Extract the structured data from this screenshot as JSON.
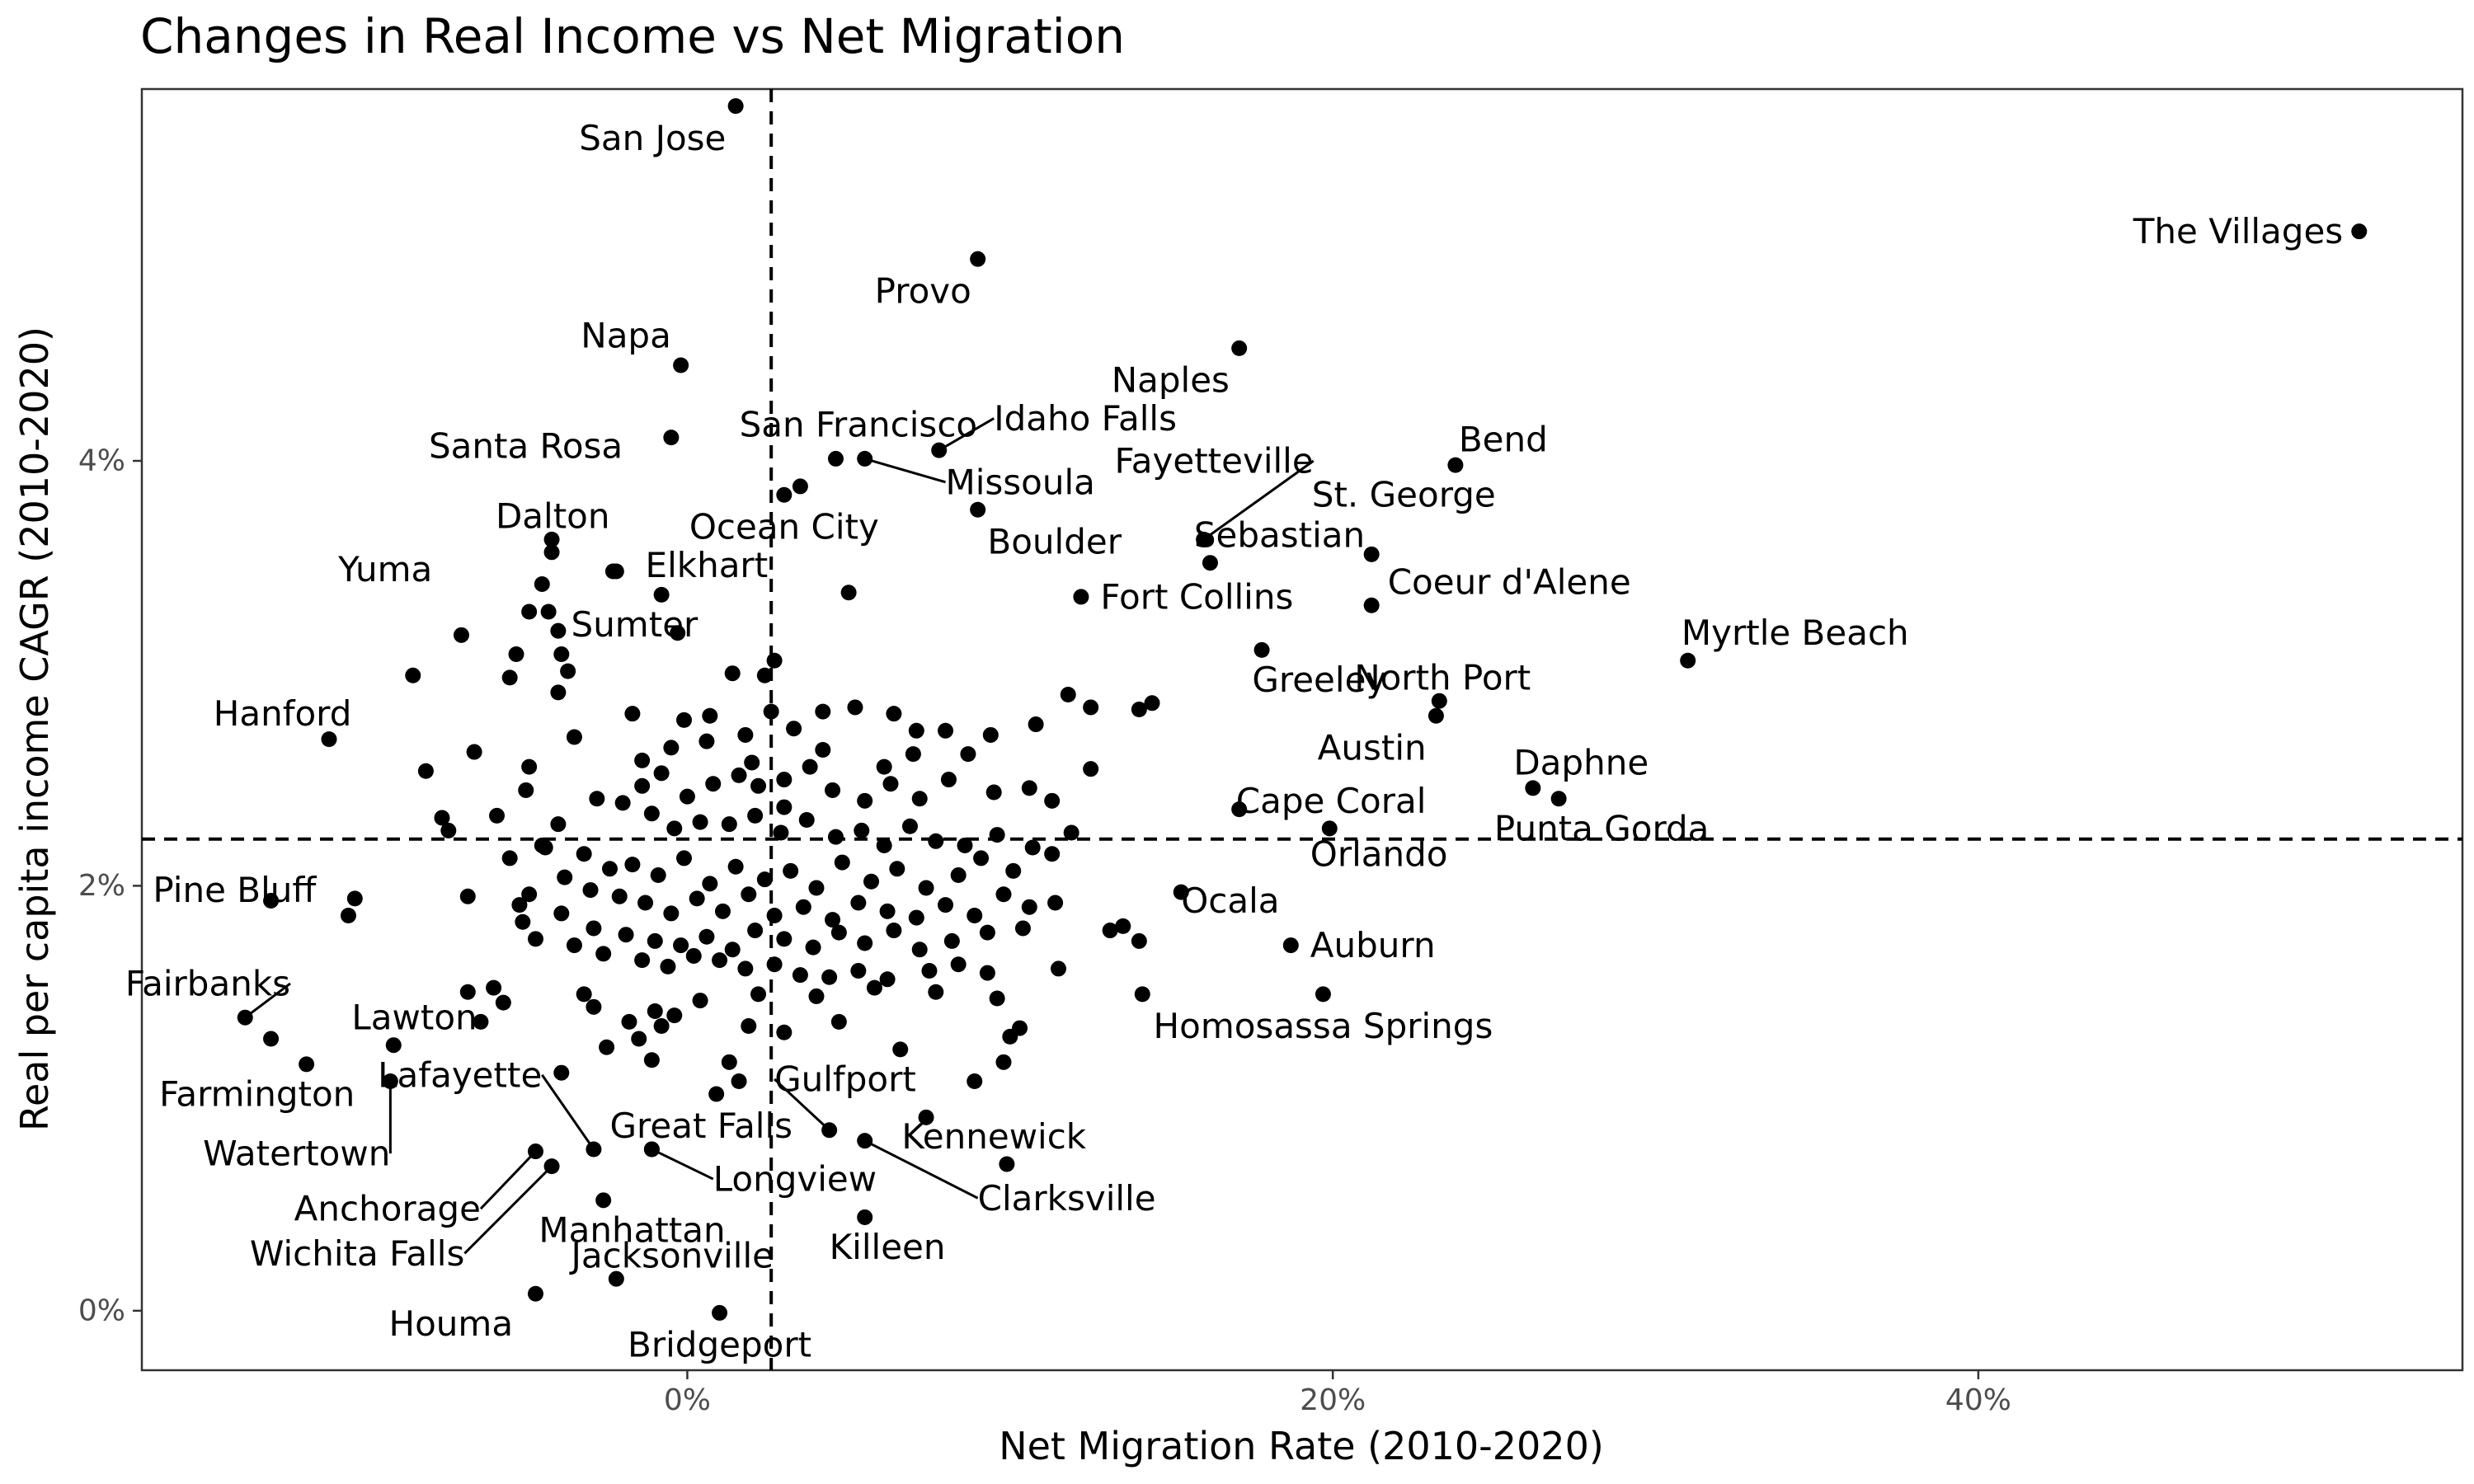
{
  "chart_data": {
    "type": "scatter",
    "title": "Changes in Real Income vs Net Migration",
    "xlabel": "Net Migration Rate (2010-2020)",
    "ylabel": "Real per capita income CAGR (2010-2020)",
    "xlim": [
      -0.169,
      0.55
    ],
    "ylim": [
      -0.0028,
      0.0575
    ],
    "x_ticks": [
      {
        "value": 0.0,
        "label": "0%"
      },
      {
        "value": 0.2,
        "label": "20%"
      },
      {
        "value": 0.4,
        "label": "40%"
      }
    ],
    "y_ticks": [
      {
        "value": 0.0,
        "label": "0%"
      },
      {
        "value": 0.02,
        "label": "2%"
      },
      {
        "value": 0.04,
        "label": "4%"
      }
    ],
    "reference_lines": {
      "x": 0.026,
      "y": 0.0222
    },
    "grid": false,
    "labeled_points": [
      {
        "name": "San Jose",
        "x": 0.015,
        "y": 0.0567,
        "anchor": "end",
        "dx": -0.003,
        "dy": -0.0015
      },
      {
        "name": "Provo",
        "x": 0.09,
        "y": 0.0495,
        "anchor": "end",
        "dx": -0.002,
        "dy": -0.0015
      },
      {
        "name": "The Villages",
        "x": 0.518,
        "y": 0.0508,
        "anchor": "end",
        "dx": -0.005,
        "dy": 0.0
      },
      {
        "name": "Naples",
        "x": 0.171,
        "y": 0.0453,
        "anchor": "end",
        "dx": -0.003,
        "dy": -0.0015
      },
      {
        "name": "Napa",
        "x": -0.002,
        "y": 0.0445,
        "anchor": "end",
        "dx": -0.003,
        "dy": 0.0014
      },
      {
        "name": "Santa Rosa",
        "x": -0.005,
        "y": 0.0411,
        "anchor": "end",
        "dx": -0.015,
        "dy": -0.0004
      },
      {
        "name": "San Francisco",
        "x": 0.046,
        "y": 0.0401,
        "anchor": "middle",
        "dx": 0.007,
        "dy": 0.0016
      },
      {
        "name": "Idaho Falls",
        "x": 0.078,
        "y": 0.0405,
        "anchor": "start",
        "dx": 0.017,
        "dy": 0.0015,
        "leader": true
      },
      {
        "name": "Missoula",
        "x": 0.055,
        "y": 0.0401,
        "anchor": "start",
        "dx": 0.025,
        "dy": -0.0011,
        "leader": true
      },
      {
        "name": "Bend",
        "x": 0.238,
        "y": 0.0398,
        "anchor": "start",
        "dx": 0.001,
        "dy": 0.0012
      },
      {
        "name": "Fayetteville",
        "x": 0.16,
        "y": 0.0363,
        "anchor": "end",
        "dx": 0.034,
        "dy": 0.0037,
        "leader": true
      },
      {
        "name": "St. George",
        "x": 0.212,
        "y": 0.0356,
        "anchor": "middle",
        "dx": 0.01,
        "dy": 0.0028
      },
      {
        "name": "Sebastian",
        "x": 0.162,
        "y": 0.0352,
        "anchor": "start",
        "dx": -0.005,
        "dy": 0.0013
      },
      {
        "name": "Ocean City",
        "x": 0.03,
        "y": 0.0384,
        "anchor": "middle",
        "dx": 0.0,
        "dy": -0.0015
      },
      {
        "name": "Dalton",
        "x": -0.042,
        "y": 0.0363,
        "anchor": "end",
        "dx": 0.018,
        "dy": 0.0011
      },
      {
        "name": "Boulder",
        "x": 0.09,
        "y": 0.0377,
        "anchor": "start",
        "dx": 0.003,
        "dy": -0.0015
      },
      {
        "name": "Yuma",
        "x": -0.042,
        "y": 0.0357,
        "anchor": "end",
        "dx": -0.037,
        "dy": -0.0008
      },
      {
        "name": "Elkhart",
        "x": -0.022,
        "y": 0.0348,
        "anchor": "start",
        "dx": 0.009,
        "dy": 0.0003
      },
      {
        "name": "Coeur d'Alene",
        "x": 0.212,
        "y": 0.0332,
        "anchor": "start",
        "dx": 0.005,
        "dy": 0.0011
      },
      {
        "name": "Fort Collins",
        "x": 0.122,
        "y": 0.0336,
        "anchor": "start",
        "dx": 0.006,
        "dy": 0.0
      },
      {
        "name": "Sumter",
        "x": -0.043,
        "y": 0.0329,
        "anchor": "start",
        "dx": 0.007,
        "dy": -0.0006
      },
      {
        "name": "Myrtle Beach",
        "x": 0.31,
        "y": 0.0306,
        "anchor": "start",
        "dx": -0.002,
        "dy": 0.0013
      },
      {
        "name": "Greeley",
        "x": 0.178,
        "y": 0.0311,
        "anchor": "start",
        "dx": -0.003,
        "dy": -0.0014
      },
      {
        "name": "North Port",
        "x": 0.233,
        "y": 0.0287,
        "anchor": "middle",
        "dx": 0.001,
        "dy": 0.0011
      },
      {
        "name": "Hanford",
        "x": -0.111,
        "y": 0.0269,
        "anchor": "end",
        "dx": 0.007,
        "dy": 0.0012
      },
      {
        "name": "Austin",
        "x": 0.232,
        "y": 0.028,
        "anchor": "end",
        "dx": -0.003,
        "dy": -0.0015
      },
      {
        "name": "Daphne",
        "x": 0.262,
        "y": 0.0246,
        "anchor": "start",
        "dx": -0.006,
        "dy": 0.0012
      },
      {
        "name": "Cape Coral",
        "x": 0.171,
        "y": 0.0236,
        "anchor": "start",
        "dx": -0.001,
        "dy": 0.0004
      },
      {
        "name": "Punta Gorda",
        "x": 0.27,
        "y": 0.0241,
        "anchor": "start",
        "dx": -0.02,
        "dy": -0.0014
      },
      {
        "name": "Orlando",
        "x": 0.199,
        "y": 0.0227,
        "anchor": "start",
        "dx": -0.006,
        "dy": -0.0012
      },
      {
        "name": "Pine Bluff",
        "x": -0.129,
        "y": 0.0193,
        "anchor": "end",
        "dx": 0.014,
        "dy": 0.0005
      },
      {
        "name": "Ocala",
        "x": 0.153,
        "y": 0.0197,
        "anchor": "start",
        "dx": 0.0,
        "dy": -0.0004
      },
      {
        "name": "Auburn",
        "x": 0.187,
        "y": 0.0172,
        "anchor": "start",
        "dx": 0.006,
        "dy": 0.0
      },
      {
        "name": "Fairbanks",
        "x": -0.137,
        "y": 0.0138,
        "anchor": "end",
        "dx": 0.014,
        "dy": 0.0016,
        "leader": true
      },
      {
        "name": "Homosassa Springs",
        "x": 0.197,
        "y": 0.0149,
        "anchor": "middle",
        "dx": 0.0,
        "dy": -0.0015
      },
      {
        "name": "Lawton",
        "x": -0.091,
        "y": 0.0125,
        "anchor": "start",
        "dx": -0.013,
        "dy": 0.0013
      },
      {
        "name": "Farmington",
        "x": -0.118,
        "y": 0.0116,
        "anchor": "end",
        "dx": 0.015,
        "dy": -0.0014
      },
      {
        "name": "Lafayette",
        "x": -0.029,
        "y": 0.0076,
        "anchor": "end",
        "dx": -0.016,
        "dy": 0.0035,
        "leader": true
      },
      {
        "name": "Gulfport",
        "x": 0.044,
        "y": 0.0085,
        "anchor": "start",
        "dx": -0.017,
        "dy": 0.0024,
        "leader": true
      },
      {
        "name": "Great Falls",
        "x": -0.011,
        "y": 0.0076,
        "anchor": "start",
        "dx": -0.013,
        "dy": 0.0011
      },
      {
        "name": "Watertown",
        "x": -0.092,
        "y": 0.0108,
        "anchor": "end",
        "dx": 0.0,
        "dy": -0.0034,
        "leader": true
      },
      {
        "name": "Kennewick",
        "x": 0.099,
        "y": 0.0069,
        "anchor": "middle",
        "dx": -0.004,
        "dy": 0.0013
      },
      {
        "name": "Longview",
        "x": -0.011,
        "y": 0.0076,
        "anchor": "start",
        "dx": 0.019,
        "dy": -0.0014,
        "leader": true
      },
      {
        "name": "Clarksville",
        "x": 0.055,
        "y": 0.008,
        "anchor": "start",
        "dx": 0.035,
        "dy": -0.0027,
        "leader": true
      },
      {
        "name": "Anchorage",
        "x": -0.047,
        "y": 0.0075,
        "anchor": "end",
        "dx": -0.017,
        "dy": -0.0027,
        "leader": true
      },
      {
        "name": "Manhattan",
        "x": -0.026,
        "y": 0.0052,
        "anchor": "start",
        "dx": -0.02,
        "dy": -0.0014
      },
      {
        "name": "Wichita Falls",
        "x": -0.042,
        "y": 0.0068,
        "anchor": "end",
        "dx": -0.027,
        "dy": -0.0041,
        "leader": true
      },
      {
        "name": "Killeen",
        "x": 0.055,
        "y": 0.0044,
        "anchor": "middle",
        "dx": 0.007,
        "dy": -0.0014
      },
      {
        "name": "Jacksonville",
        "x": -0.022,
        "y": 0.0015,
        "anchor": "start",
        "dx": -0.014,
        "dy": 0.0011
      },
      {
        "name": "Houma",
        "x": -0.047,
        "y": 0.0008,
        "anchor": "end",
        "dx": -0.007,
        "dy": -0.0014
      },
      {
        "name": "Bridgeport",
        "x": 0.01,
        "y": -0.0001,
        "anchor": "middle",
        "dx": 0.0,
        "dy": -0.0015
      }
    ],
    "other_points": [
      [
        0.035,
        0.0388
      ],
      [
        -0.023,
        0.0348
      ],
      [
        -0.008,
        0.0337
      ],
      [
        0.05,
        0.0338
      ],
      [
        -0.045,
        0.0342
      ],
      [
        -0.049,
        0.0329
      ],
      [
        -0.07,
        0.0318
      ],
      [
        -0.04,
        0.032
      ],
      [
        -0.003,
        0.0319
      ],
      [
        0.027,
        0.0306
      ],
      [
        -0.039,
        0.0309
      ],
      [
        -0.037,
        0.0301
      ],
      [
        -0.053,
        0.0309
      ],
      [
        -0.085,
        0.0299
      ],
      [
        -0.055,
        0.0298
      ],
      [
        0.014,
        0.03
      ],
      [
        0.024,
        0.0299
      ],
      [
        -0.04,
        0.0291
      ],
      [
        -0.081,
        0.0254
      ],
      [
        -0.066,
        0.0263
      ],
      [
        -0.076,
        0.0232
      ],
      [
        -0.074,
        0.0226
      ],
      [
        -0.059,
        0.0233
      ],
      [
        -0.049,
        0.0256
      ],
      [
        -0.05,
        0.0245
      ],
      [
        -0.044,
        0.0218
      ],
      [
        -0.035,
        0.027
      ],
      [
        -0.017,
        0.0281
      ],
      [
        -0.001,
        0.0278
      ],
      [
        0.007,
        0.028
      ],
      [
        0.018,
        0.0271
      ],
      [
        0.026,
        0.0282
      ],
      [
        0.033,
        0.0274
      ],
      [
        0.042,
        0.0282
      ],
      [
        0.052,
        0.0284
      ],
      [
        0.064,
        0.0281
      ],
      [
        0.071,
        0.0273
      ],
      [
        0.08,
        0.0273
      ],
      [
        0.094,
        0.0271
      ],
      [
        0.108,
        0.0276
      ],
      [
        0.118,
        0.029
      ],
      [
        0.125,
        0.0284
      ],
      [
        0.14,
        0.0283
      ],
      [
        0.144,
        0.0286
      ],
      [
        -0.014,
        0.0259
      ],
      [
        -0.008,
        0.0253
      ],
      [
        0.0,
        0.0242
      ],
      [
        0.008,
        0.0248
      ],
      [
        0.016,
        0.0252
      ],
      [
        0.022,
        0.0247
      ],
      [
        0.03,
        0.025
      ],
      [
        0.038,
        0.0256
      ],
      [
        0.045,
        0.0245
      ],
      [
        0.055,
        0.024
      ],
      [
        0.063,
        0.0248
      ],
      [
        0.072,
        0.0241
      ],
      [
        0.081,
        0.025
      ],
      [
        0.095,
        0.0244
      ],
      [
        0.106,
        0.0246
      ],
      [
        0.113,
        0.024
      ],
      [
        0.125,
        0.0255
      ],
      [
        -0.028,
        0.0241
      ],
      [
        -0.02,
        0.0239
      ],
      [
        -0.011,
        0.0234
      ],
      [
        -0.004,
        0.0227
      ],
      [
        0.004,
        0.023
      ],
      [
        0.013,
        0.0229
      ],
      [
        0.021,
        0.0233
      ],
      [
        0.029,
        0.0225
      ],
      [
        0.037,
        0.0231
      ],
      [
        0.046,
        0.0223
      ],
      [
        0.054,
        0.0226
      ],
      [
        0.061,
        0.0219
      ],
      [
        0.069,
        0.0228
      ],
      [
        0.077,
        0.0221
      ],
      [
        0.086,
        0.0219
      ],
      [
        0.096,
        0.0224
      ],
      [
        0.107,
        0.0218
      ],
      [
        0.119,
        0.0225
      ],
      [
        -0.032,
        0.0215
      ],
      [
        -0.024,
        0.0208
      ],
      [
        -0.017,
        0.021
      ],
      [
        -0.009,
        0.0205
      ],
      [
        -0.001,
        0.0213
      ],
      [
        0.007,
        0.0201
      ],
      [
        0.015,
        0.0209
      ],
      [
        0.024,
        0.0203
      ],
      [
        0.032,
        0.0207
      ],
      [
        0.04,
        0.0199
      ],
      [
        0.048,
        0.0211
      ],
      [
        0.057,
        0.0202
      ],
      [
        0.065,
        0.0208
      ],
      [
        0.074,
        0.0199
      ],
      [
        0.084,
        0.0205
      ],
      [
        0.091,
        0.0213
      ],
      [
        0.101,
        0.0207
      ],
      [
        0.113,
        0.0215
      ],
      [
        -0.055,
        0.0213
      ],
      [
        -0.045,
        0.0219
      ],
      [
        -0.038,
        0.0204
      ],
      [
        -0.03,
        0.0198
      ],
      [
        -0.021,
        0.0195
      ],
      [
        -0.013,
        0.0192
      ],
      [
        -0.005,
        0.0187
      ],
      [
        0.003,
        0.0194
      ],
      [
        0.011,
        0.0188
      ],
      [
        0.019,
        0.0196
      ],
      [
        0.027,
        0.0186
      ],
      [
        0.036,
        0.019
      ],
      [
        0.045,
        0.0184
      ],
      [
        0.053,
        0.0192
      ],
      [
        0.062,
        0.0188
      ],
      [
        0.071,
        0.0185
      ],
      [
        0.08,
        0.0191
      ],
      [
        0.089,
        0.0186
      ],
      [
        0.098,
        0.0196
      ],
      [
        0.106,
        0.019
      ],
      [
        0.114,
        0.0192
      ],
      [
        -0.068,
        0.0195
      ],
      [
        -0.052,
        0.0191
      ],
      [
        -0.039,
        0.0187
      ],
      [
        -0.029,
        0.018
      ],
      [
        -0.019,
        0.0177
      ],
      [
        -0.01,
        0.0174
      ],
      [
        -0.002,
        0.0172
      ],
      [
        0.006,
        0.0176
      ],
      [
        0.014,
        0.017
      ],
      [
        0.021,
        0.0179
      ],
      [
        0.03,
        0.0175
      ],
      [
        0.039,
        0.0171
      ],
      [
        0.047,
        0.0178
      ],
      [
        0.055,
        0.0173
      ],
      [
        0.064,
        0.0179
      ],
      [
        0.072,
        0.017
      ],
      [
        0.082,
        0.0174
      ],
      [
        0.093,
        0.0178
      ],
      [
        0.104,
        0.018
      ],
      [
        0.131,
        0.0179
      ],
      [
        0.135,
        0.0181
      ],
      [
        0.14,
        0.0174
      ],
      [
        -0.047,
        0.0175
      ],
      [
        -0.035,
        0.0172
      ],
      [
        -0.026,
        0.0168
      ],
      [
        -0.014,
        0.0165
      ],
      [
        -0.006,
        0.0162
      ],
      [
        0.002,
        0.0167
      ],
      [
        0.01,
        0.0165
      ],
      [
        0.018,
        0.0161
      ],
      [
        0.027,
        0.0163
      ],
      [
        0.035,
        0.0158
      ],
      [
        0.044,
        0.0157
      ],
      [
        0.053,
        0.016
      ],
      [
        0.062,
        0.0156
      ],
      [
        0.075,
        0.016
      ],
      [
        0.084,
        0.0163
      ],
      [
        0.093,
        0.0159
      ],
      [
        0.115,
        0.0161
      ],
      [
        0.004,
        0.0146
      ],
      [
        0.022,
        0.0149
      ],
      [
        0.04,
        0.0148
      ],
      [
        0.058,
        0.0152
      ],
      [
        0.077,
        0.015
      ],
      [
        0.096,
        0.0147
      ],
      [
        0.141,
        0.0149
      ],
      [
        -0.032,
        0.0149
      ],
      [
        -0.029,
        0.0143
      ],
      [
        -0.018,
        0.0136
      ],
      [
        -0.008,
        0.0134
      ],
      [
        -0.01,
        0.0141
      ],
      [
        -0.068,
        0.015
      ],
      [
        -0.06,
        0.0152
      ],
      [
        -0.057,
        0.0145
      ],
      [
        -0.064,
        0.0136
      ],
      [
        -0.015,
        0.0128
      ],
      [
        -0.004,
        0.0139
      ],
      [
        0.019,
        0.0134
      ],
      [
        0.03,
        0.0131
      ],
      [
        0.047,
        0.0136
      ],
      [
        0.066,
        0.0123
      ],
      [
        0.1,
        0.0129
      ],
      [
        0.103,
        0.0133
      ],
      [
        0.089,
        0.0108
      ],
      [
        0.098,
        0.0117
      ],
      [
        0.013,
        0.0117
      ],
      [
        0.016,
        0.0108
      ],
      [
        0.009,
        0.0102
      ],
      [
        -0.025,
        0.0124
      ],
      [
        -0.011,
        0.0118
      ],
      [
        -0.039,
        0.0112
      ],
      [
        0.074,
        0.0091
      ],
      [
        -0.051,
        0.0183
      ],
      [
        -0.049,
        0.0196
      ],
      [
        -0.04,
        0.0229
      ],
      [
        -0.014,
        0.0247
      ],
      [
        -0.005,
        0.0265
      ],
      [
        0.006,
        0.0268
      ],
      [
        0.02,
        0.0258
      ],
      [
        0.03,
        0.0237
      ],
      [
        0.042,
        0.0264
      ],
      [
        0.061,
        0.0256
      ],
      [
        0.07,
        0.0262
      ],
      [
        0.087,
        0.0262
      ],
      [
        -0.105,
        0.0186
      ],
      [
        -0.103,
        0.0194
      ],
      [
        -0.129,
        0.0128
      ]
    ]
  }
}
